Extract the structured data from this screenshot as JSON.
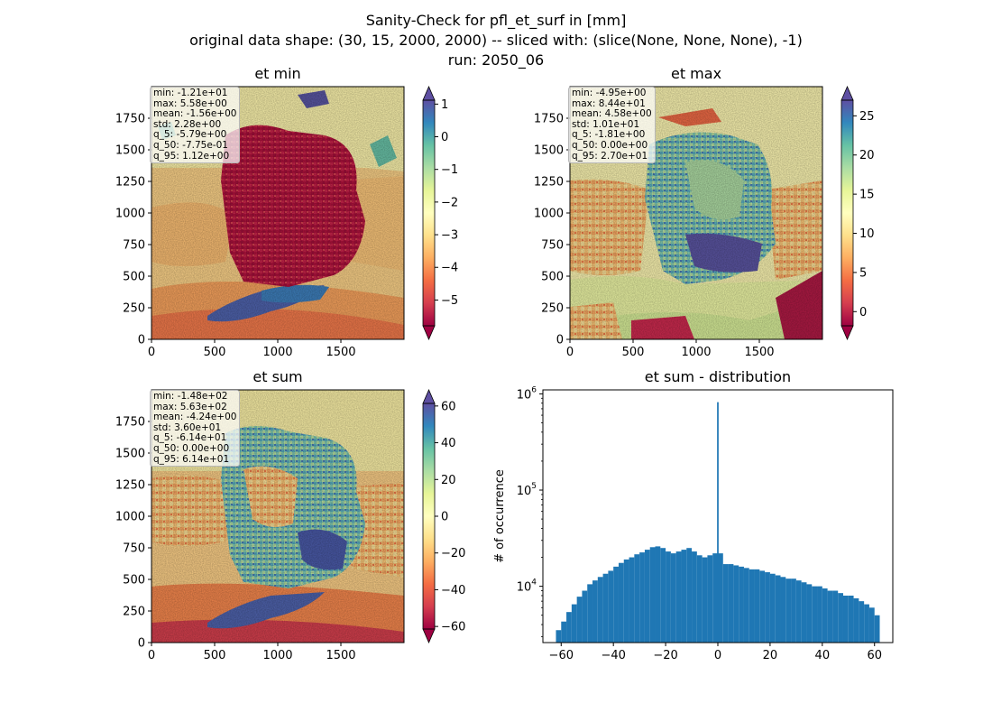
{
  "figure": {
    "title_lines": [
      "Sanity-Check for pfl_et_surf in [mm]",
      "original data shape: (30, 15, 2000, 2000) -- sliced with: (slice(None, None, None), -1)",
      "run: 2050_06"
    ],
    "colormap": "Spectral",
    "colormap_stops": [
      "#9e0142",
      "#d53e4f",
      "#f46d43",
      "#fdae61",
      "#fee08b",
      "#ffffbf",
      "#e6f598",
      "#abdda4",
      "#66c2a5",
      "#3288bd",
      "#5e4fa2"
    ],
    "hist_color": "#1f77b4"
  },
  "panels": {
    "et_min": {
      "title": "et min",
      "stats": [
        "min: -1.21e+01",
        "max: 5.58e+00",
        "mean: -1.56e+00",
        "std: 2.28e+00",
        "q_5: -5.79e+00",
        "q_50: -7.75e-01",
        "q_95: 1.12e+00"
      ],
      "x_ticks": [
        "0",
        "500",
        "1000",
        "1500"
      ],
      "y_ticks": [
        "0",
        "250",
        "500",
        "750",
        "1000",
        "1250",
        "1500",
        "1750"
      ],
      "cbar_ticks": [
        "1",
        "0",
        "−1",
        "−2",
        "−3",
        "−4",
        "−5"
      ]
    },
    "et_max": {
      "title": "et max",
      "stats": [
        "min: -4.95e+00",
        "max: 8.44e+01",
        "mean: 4.58e+00",
        "std: 1.01e+01",
        "q_5: -1.81e+00",
        "q_50: 0.00e+00",
        "q_95: 2.70e+01"
      ],
      "x_ticks": [
        "0",
        "500",
        "1000",
        "1500"
      ],
      "y_ticks": [
        "0",
        "250",
        "500",
        "750",
        "1000",
        "1250",
        "1500",
        "1750"
      ],
      "cbar_ticks": [
        "25",
        "20",
        "15",
        "10",
        "5",
        "0"
      ]
    },
    "et_sum": {
      "title": "et sum",
      "stats": [
        "min: -1.48e+02",
        "max: 5.63e+02",
        "mean: -4.24e+00",
        "std: 3.60e+01",
        "q_5: -6.14e+01",
        "q_50: 0.00e+00",
        "q_95: 6.14e+01"
      ],
      "x_ticks": [
        "0",
        "500",
        "1000",
        "1500"
      ],
      "y_ticks": [
        "0",
        "250",
        "500",
        "750",
        "1000",
        "1250",
        "1500",
        "1750"
      ],
      "cbar_ticks": [
        "60",
        "40",
        "20",
        "0",
        "−20",
        "−40",
        "−60"
      ]
    },
    "hist": {
      "title": "et sum - distribution",
      "ylabel": "# of occurrence",
      "x_ticks": [
        "−60",
        "−40",
        "−20",
        "0",
        "20",
        "40",
        "60"
      ],
      "y_ticks": [
        {
          "base": "10",
          "exp": "4"
        },
        {
          "base": "10",
          "exp": "5"
        },
        {
          "base": "10",
          "exp": "6"
        }
      ]
    }
  },
  "chart_data": [
    {
      "type": "heatmap",
      "title": "et min",
      "xlim": [
        0,
        2000
      ],
      "ylim": [
        0,
        2000
      ],
      "color_range": [
        -5.79,
        1.12
      ],
      "extend": "both",
      "colorbar_ticks": [
        1,
        0,
        -1,
        -2,
        -3,
        -4,
        -5
      ]
    },
    {
      "type": "heatmap",
      "title": "et max",
      "xlim": [
        0,
        2000
      ],
      "ylim": [
        0,
        2000
      ],
      "color_range": [
        -1.81,
        27.0
      ],
      "extend": "both",
      "colorbar_ticks": [
        25,
        20,
        15,
        10,
        5,
        0
      ]
    },
    {
      "type": "heatmap",
      "title": "et sum",
      "xlim": [
        0,
        2000
      ],
      "ylim": [
        0,
        2000
      ],
      "color_range": [
        -61.4,
        61.4
      ],
      "extend": "both",
      "colorbar_ticks": [
        60,
        40,
        20,
        0,
        -20,
        -40,
        -60
      ]
    },
    {
      "type": "bar",
      "title": "et sum - distribution",
      "ylabel": "# of occurrence",
      "xlim": [
        -67,
        67
      ],
      "ylim": [
        2600,
        1100000
      ],
      "y_scale": "log",
      "bins_x": [
        -61,
        -59,
        -57,
        -55,
        -53,
        -51,
        -49,
        -47,
        -45,
        -43,
        -41,
        -39,
        -37,
        -35,
        -33,
        -31,
        -29,
        -27,
        -25,
        -23,
        -21,
        -19,
        -17,
        -15,
        -13,
        -11,
        -9,
        -7,
        -5,
        -3,
        -1,
        0,
        1,
        3,
        5,
        7,
        9,
        11,
        13,
        15,
        17,
        19,
        21,
        23,
        25,
        27,
        29,
        31,
        33,
        35,
        37,
        39,
        41,
        43,
        45,
        47,
        49,
        51,
        53,
        55,
        57,
        59,
        61
      ],
      "values": [
        3500,
        4300,
        5400,
        6500,
        7800,
        9000,
        10500,
        11500,
        12500,
        13500,
        14500,
        16000,
        17500,
        19000,
        20000,
        21500,
        22500,
        24000,
        25500,
        26000,
        25000,
        23000,
        22000,
        23000,
        24000,
        25000,
        23000,
        21000,
        20000,
        21000,
        22000,
        820000,
        22000,
        17000,
        17000,
        16500,
        16000,
        15500,
        15000,
        15000,
        14500,
        14000,
        13500,
        13000,
        12500,
        12000,
        12000,
        11500,
        11000,
        10500,
        10000,
        10000,
        9500,
        9000,
        9000,
        8500,
        8000,
        8000,
        7500,
        7000,
        6500,
        6000,
        5000
      ]
    }
  ]
}
